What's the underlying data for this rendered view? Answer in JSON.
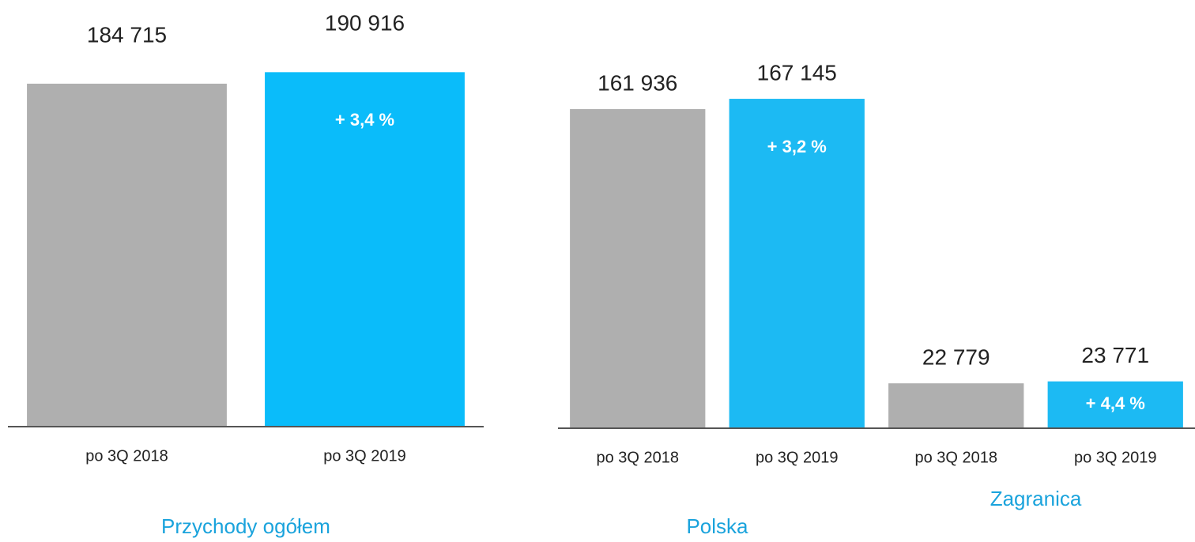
{
  "chart_data": [
    {
      "type": "bar",
      "categories": [
        "po 3Q 2018",
        "po 3Q 2019"
      ],
      "values": [
        184715,
        190916
      ],
      "value_labels": [
        "184 715",
        "190 916"
      ],
      "annotations": [
        null,
        "+ 3,4 %"
      ],
      "colors": [
        "#afafaf",
        "#0abcfa"
      ],
      "groups": [
        "Przychody ogółem"
      ],
      "group_color": "#1aa3dc",
      "ylim": [
        0,
        200000
      ]
    },
    {
      "type": "bar",
      "categories": [
        "po 3Q 2018",
        "po 3Q 2019",
        "po 3Q 2018",
        "po 3Q 2019"
      ],
      "values": [
        161936,
        167145,
        22779,
        23771
      ],
      "value_labels": [
        "161 936",
        "167 145",
        "22 779",
        "23 771"
      ],
      "annotations": [
        null,
        "+ 3,2 %",
        null,
        "+ 4,4 %"
      ],
      "colors": [
        "#afafaf",
        "#1cbaf3",
        "#afafaf",
        "#1cbaf3"
      ],
      "groups": [
        "Polska",
        "Zagranica"
      ],
      "group_color": "#1aa3dc",
      "ylim": [
        0,
        180000
      ]
    }
  ]
}
